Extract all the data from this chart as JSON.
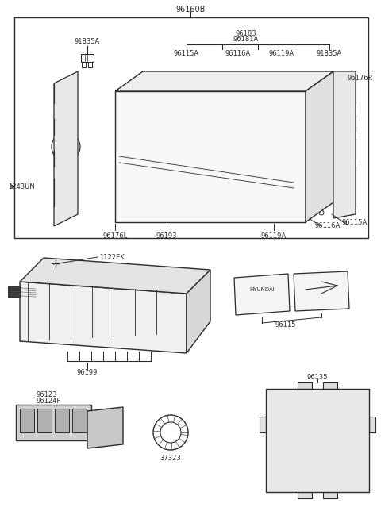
{
  "bg_color": "#ffffff",
  "fig_width": 4.8,
  "fig_height": 6.44,
  "dpi": 100,
  "lc": "#2a2a2a",
  "tc": "#2a2a2a",
  "fs": 6.0,
  "labels": {
    "title": "96160B",
    "91835A_tl": "91835A",
    "96183": "96183",
    "96181A": "96181A",
    "96115A_t": "96115A",
    "96116A_t": "96116A",
    "96119A_t": "96119A",
    "91835A_tr": "91835A",
    "96176R": "96176R",
    "1243UN": "1243UN",
    "96176L": "96176L",
    "96193": "96193",
    "96119A_b": "96119A",
    "96116A_b": "96116A",
    "96115A_b": "96115A",
    "1122EK": "1122EK",
    "96199": "96199",
    "96115": "96115",
    "96123": "96123",
    "96124F": "96124F",
    "37323": "37323",
    "96135": "96135"
  }
}
